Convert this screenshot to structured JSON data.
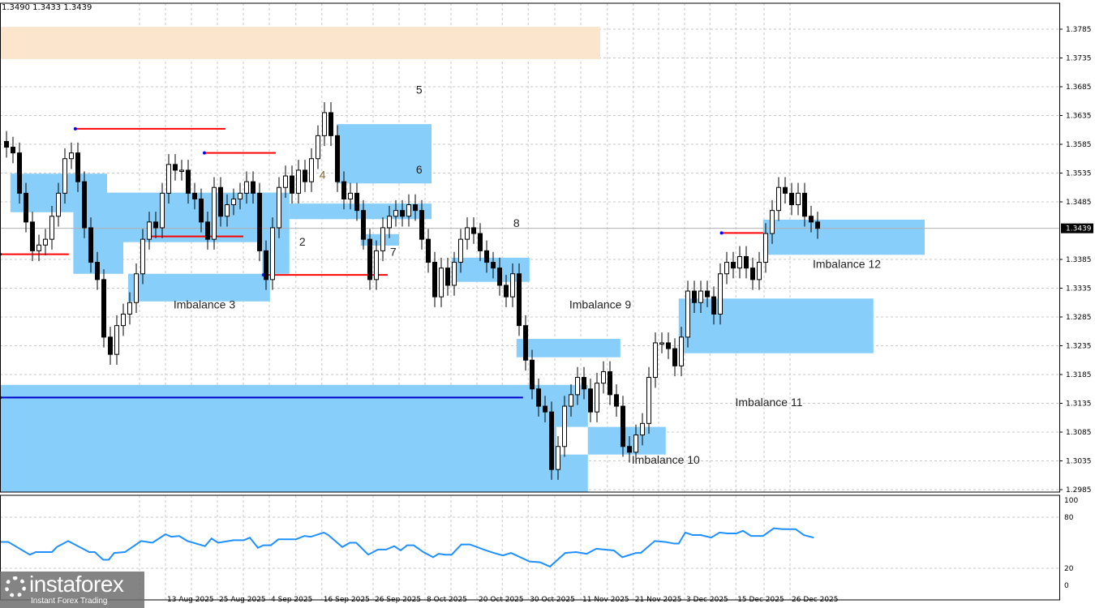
{
  "header": {
    "ohlc_text": "1.3490 1.3433 1.3439"
  },
  "watermark": {
    "brand": "instaforex",
    "tagline": "Instant Forex Trading"
  },
  "colors": {
    "zone": "#87CEFA",
    "supply_zone": "#FCE5CD",
    "level": "#FF0000",
    "support_line": "#0000CD",
    "oscillator": "#1E90FF",
    "bull_body": "#FFFFFF",
    "bear_body": "#000000"
  },
  "chart_data": {
    "type": "candlestick",
    "price_axis": {
      "ylim": [
        1.2975,
        1.3795
      ],
      "ticks": [
        "1.3785",
        "1.3735",
        "1.3685",
        "1.3635",
        "1.3585",
        "1.3535",
        "1.3485",
        "1.3385",
        "1.3335",
        "1.3285",
        "1.3235",
        "1.3185",
        "1.3135",
        "1.3085",
        "1.3035",
        "1.2985"
      ],
      "current_price": "1.3439"
    },
    "date_axis": {
      "labels": [
        {
          "bar": 24.5,
          "text": "13 Aug 2025"
        },
        {
          "bar": 32.5,
          "text": "25 Aug 2025"
        },
        {
          "bar": 40.5,
          "text": "4 Sep 2025"
        },
        {
          "bar": 48.6,
          "text": "16 Sep 2025"
        },
        {
          "bar": 56.5,
          "text": "26 Sep 2025"
        },
        {
          "bar": 64.5,
          "text": "8 Oct 2025"
        },
        {
          "bar": 72.5,
          "text": "20 Oct 2025"
        },
        {
          "bar": 80.4,
          "text": "30 Oct 2025"
        },
        {
          "bar": 88.5,
          "text": "11 Nov 2025"
        },
        {
          "bar": 96.6,
          "text": "21 Nov 2025"
        },
        {
          "bar": 104.5,
          "text": "3 Dec 2025"
        },
        {
          "bar": 112.4,
          "text": "15 Dec 2025"
        },
        {
          "bar": 120.75,
          "text": "26 Dec 2025"
        }
      ]
    },
    "closes": [
      1.358,
      1.357,
      1.35,
      1.345,
      1.34,
      1.341,
      1.342,
      1.346,
      1.35,
      1.356,
      1.357,
      1.352,
      1.344,
      1.338,
      1.335,
      1.325,
      1.322,
      1.327,
      1.329,
      1.331,
      1.336,
      1.342,
      1.345,
      1.344,
      1.35,
      1.355,
      1.354,
      1.354,
      1.35,
      1.349,
      1.345,
      1.342,
      1.351,
      1.346,
      1.348,
      1.349,
      1.35,
      1.352,
      1.35,
      1.34,
      1.335,
      1.344,
      1.351,
      1.353,
      1.35,
      1.354,
      1.352,
      1.356,
      1.36,
      1.364,
      1.36,
      1.352,
      1.349,
      1.35,
      1.347,
      1.342,
      1.335,
      1.34,
      1.344,
      1.346,
      1.347,
      1.346,
      1.348,
      1.347,
      1.342,
      1.338,
      1.332,
      1.337,
      1.334,
      1.338,
      1.342,
      1.344,
      1.343,
      1.34,
      1.338,
      1.337,
      1.334,
      1.332,
      1.336,
      1.327,
      1.321,
      1.316,
      1.313,
      1.312,
      1.302,
      1.306,
      1.313,
      1.315,
      1.318,
      1.316,
      1.312,
      1.317,
      1.319,
      1.315,
      1.313,
      1.306,
      1.305,
      1.308,
      1.31,
      1.318,
      1.324,
      1.324,
      1.323,
      1.32,
      1.325,
      1.333,
      1.331,
      1.333,
      1.332,
      1.329,
      1.336,
      1.338,
      1.337,
      1.339,
      1.337,
      1.335,
      1.338,
      1.343,
      1.347,
      1.351,
      1.35,
      1.348,
      1.35,
      1.346,
      1.345,
      1.3439
    ],
    "zones": [
      {
        "kind": "supply",
        "from_bar": -1,
        "to_bar": 91.5,
        "top": 1.3789,
        "bottom": 1.3733
      },
      {
        "kind": "imbalance",
        "from_bar": 0.6,
        "to_bar": 15.5,
        "top": 1.3534,
        "bottom": 1.3467
      },
      {
        "kind": "imbalance",
        "from_bar": 10.3,
        "to_bar": 18,
        "top": 1.3501,
        "bottom": 1.336
      },
      {
        "kind": "imbalance",
        "from_bar": 18,
        "to_bar": 42,
        "top": 1.3501,
        "bottom": 1.3415
      },
      {
        "kind": "imbalance",
        "from_bar": 39.4,
        "to_bar": 43.6,
        "top": 1.3501,
        "bottom": 1.336
      },
      {
        "kind": "imbalance",
        "from_bar": 18.75,
        "to_bar": 40.6,
        "top": 1.336,
        "bottom": 1.3312
      },
      {
        "kind": "imbalance",
        "from_bar": 50.9,
        "to_bar": 65.5,
        "top": 1.362,
        "bottom": 1.3517
      },
      {
        "kind": "imbalance",
        "from_bar": 43.6,
        "to_bar": 65.5,
        "top": 1.3482,
        "bottom": 1.3455
      },
      {
        "kind": "imbalance",
        "from_bar": 54.6,
        "to_bar": 60.5,
        "top": 1.3429,
        "bottom": 1.3409
      },
      {
        "kind": "imbalance",
        "from_bar": 68.6,
        "to_bar": 80.6,
        "top": 1.3388,
        "bottom": 1.3346
      },
      {
        "kind": "imbalance",
        "from_bar": 78.6,
        "to_bar": 94.6,
        "top": 1.3247,
        "bottom": 1.3215
      },
      {
        "kind": "imbalance",
        "from_bar": -1,
        "to_bar": 89.6,
        "top": 1.3167,
        "bottom": 1.2981
      },
      {
        "kind": "gap",
        "from_bar": 84.75,
        "to_bar": 89.6,
        "top": 1.3094,
        "bottom": 1.3046
      },
      {
        "kind": "imbalance",
        "from_bar": 89.6,
        "to_bar": 101.6,
        "top": 1.3094,
        "bottom": 1.3046
      },
      {
        "kind": "imbalance",
        "from_bar": 103.6,
        "to_bar": 133.6,
        "top": 1.3317,
        "bottom": 1.3222
      },
      {
        "kind": "imbalance",
        "from_bar": 116.6,
        "to_bar": 141.5,
        "top": 1.3454,
        "bottom": 1.3393
      }
    ],
    "levels": [
      {
        "color": "red",
        "price": 1.3394,
        "from_bar": -1,
        "to_bar": 9.6
      },
      {
        "color": "red",
        "price": 1.3612,
        "from_bar": 10.6,
        "to_bar": 33.75
      },
      {
        "color": "red",
        "price": 1.3425,
        "from_bar": 21.9,
        "to_bar": 36.5
      },
      {
        "color": "red",
        "price": 1.357,
        "from_bar": 30.5,
        "to_bar": 41.5
      },
      {
        "color": "red",
        "price": 1.3358,
        "from_bar": 39.6,
        "to_bar": 58.75
      },
      {
        "color": "red",
        "price": 1.3431,
        "from_bar": 110.2,
        "to_bar": 116.6
      },
      {
        "color": "blue",
        "price": 1.3145,
        "from_bar": -1,
        "to_bar": 79.6
      }
    ],
    "annotations": [
      {
        "text": "5",
        "bar": 63.6,
        "price": 1.3673
      },
      {
        "text": "6",
        "bar": 63.6,
        "price": 1.3534
      },
      {
        "text": "4",
        "bar": 48.7,
        "price": 1.3525
      },
      {
        "text": "2",
        "bar": 45.6,
        "price": 1.3409
      },
      {
        "text": "7",
        "bar": 59.6,
        "price": 1.3391
      },
      {
        "text": "8",
        "bar": 78.6,
        "price": 1.3441
      },
      {
        "text": "Imbalance 3",
        "bar": 30.5,
        "price": 1.33
      },
      {
        "text": "Imbalance 9",
        "bar": 91.5,
        "price": 1.33
      },
      {
        "text": "Imbalance 10",
        "bar": 101.6,
        "price": 1.303
      },
      {
        "text": "Imbalance 11",
        "bar": 117.5,
        "price": 1.313
      },
      {
        "text": "Imbalance 12",
        "bar": 129.5,
        "price": 1.337
      }
    ],
    "oscillator": {
      "ylim": [
        0,
        100
      ],
      "ticks": [
        "100",
        "80",
        "20",
        "0"
      ],
      "levels": [
        80,
        20
      ],
      "points": [
        [
          -1,
          51
        ],
        [
          0.25,
          51
        ],
        [
          3.6,
          36
        ],
        [
          4.5,
          39
        ],
        [
          7,
          39
        ],
        [
          7.75,
          45
        ],
        [
          9.5,
          52
        ],
        [
          12.75,
          39
        ],
        [
          13.6,
          39
        ],
        [
          14.9,
          30
        ],
        [
          15.75,
          30
        ],
        [
          16.6,
          38
        ],
        [
          18.25,
          39
        ],
        [
          20.75,
          52
        ],
        [
          22.5,
          50
        ],
        [
          24.5,
          60
        ],
        [
          25.4,
          57
        ],
        [
          26.6,
          58
        ],
        [
          27.9,
          52
        ],
        [
          30.6,
          46
        ],
        [
          31.6,
          55
        ],
        [
          32.6,
          50
        ],
        [
          35,
          53
        ],
        [
          36.6,
          53
        ],
        [
          37.5,
          56
        ],
        [
          38.75,
          44
        ],
        [
          39.6,
          47
        ],
        [
          40.75,
          47
        ],
        [
          41.9,
          54
        ],
        [
          44.6,
          54
        ],
        [
          45.9,
          58
        ],
        [
          46.9,
          57
        ],
        [
          48.9,
          62
        ],
        [
          49.6,
          59
        ],
        [
          51.75,
          45
        ],
        [
          52.9,
          50
        ],
        [
          53.9,
          50
        ],
        [
          55.75,
          36
        ],
        [
          57.25,
          42
        ],
        [
          58.5,
          42
        ],
        [
          59.75,
          46
        ],
        [
          60.75,
          41
        ],
        [
          61.75,
          47
        ],
        [
          62.75,
          47
        ],
        [
          64.25,
          39
        ],
        [
          65.75,
          33
        ],
        [
          66.6,
          37
        ],
        [
          67.6,
          36
        ],
        [
          68.6,
          36
        ],
        [
          70.1,
          48
        ],
        [
          71.4,
          48
        ],
        [
          73.9,
          41
        ],
        [
          75.1,
          38
        ],
        [
          76.5,
          35
        ],
        [
          77.75,
          38
        ],
        [
          80.6,
          28
        ],
        [
          82.25,
          27
        ],
        [
          83.75,
          22
        ],
        [
          86.1,
          38
        ],
        [
          87.75,
          39
        ],
        [
          89.4,
          37
        ],
        [
          90.9,
          43
        ],
        [
          92.1,
          42
        ],
        [
          93.6,
          41
        ],
        [
          94.9,
          33
        ],
        [
          95.75,
          35
        ],
        [
          97,
          38
        ],
        [
          97.75,
          38
        ],
        [
          99.9,
          52
        ],
        [
          101.5,
          51
        ],
        [
          102.9,
          49
        ],
        [
          103.6,
          49
        ],
        [
          104.6,
          62
        ],
        [
          105.75,
          59
        ],
        [
          107,
          59
        ],
        [
          108.6,
          56
        ],
        [
          109.9,
          62
        ],
        [
          111.1,
          61
        ],
        [
          112.5,
          61
        ],
        [
          113.5,
          64
        ],
        [
          114.75,
          58
        ],
        [
          116.6,
          58
        ],
        [
          118.25,
          67
        ],
        [
          119.6,
          66
        ],
        [
          121.6,
          66
        ],
        [
          122.9,
          59
        ],
        [
          124.4,
          56
        ]
      ]
    }
  }
}
